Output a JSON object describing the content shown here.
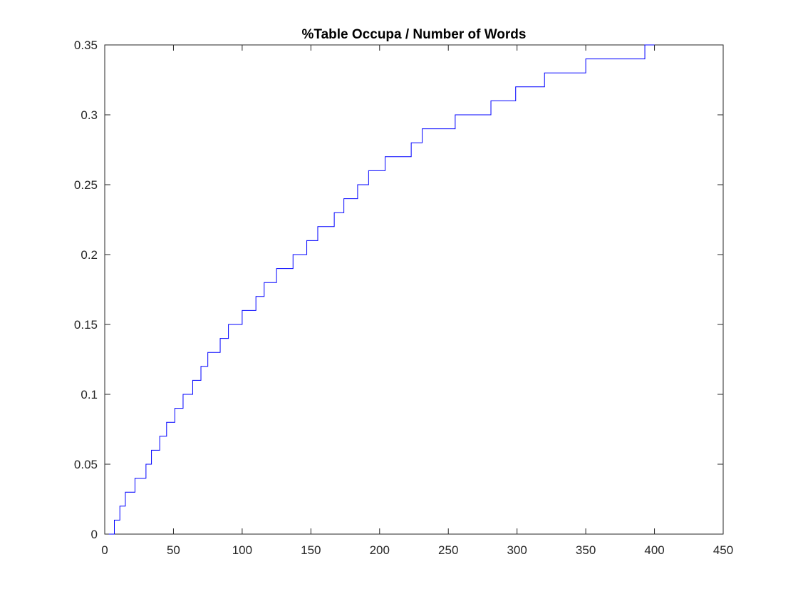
{
  "chart_data": {
    "type": "line",
    "title": "%Table Occupa / Number of Words",
    "xlabel": "",
    "ylabel": "",
    "xlim": [
      0,
      450
    ],
    "ylim": [
      0,
      0.35
    ],
    "x_ticks": [
      0,
      50,
      100,
      150,
      200,
      250,
      300,
      350,
      400,
      450
    ],
    "x_tick_labels": [
      "0",
      "50",
      "100",
      "150",
      "200",
      "250",
      "300",
      "350",
      "400",
      "450"
    ],
    "y_ticks": [
      0,
      0.05,
      0.1,
      0.15,
      0.2,
      0.25,
      0.3,
      0.35
    ],
    "y_tick_labels": [
      "0",
      "0.05",
      "0.1",
      "0.15",
      "0.2",
      "0.25",
      "0.3",
      "0.35"
    ],
    "grid": false,
    "line_color": "#0000ff",
    "series": [
      {
        "step": "post",
        "x": [
          3,
          7,
          11,
          15,
          22,
          30,
          34,
          40,
          45,
          51,
          57,
          64,
          70,
          75,
          84,
          90,
          100,
          110,
          116,
          125,
          137,
          147,
          155,
          167,
          174,
          184,
          192,
          204,
          223,
          231,
          255,
          281,
          299,
          320,
          350,
          393,
          400
        ],
        "y": [
          0,
          0.01,
          0.02,
          0.03,
          0.04,
          0.05,
          0.06,
          0.07,
          0.08,
          0.09,
          0.1,
          0.11,
          0.12,
          0.13,
          0.14,
          0.15,
          0.16,
          0.17,
          0.18,
          0.19,
          0.2,
          0.21,
          0.22,
          0.23,
          0.24,
          0.25,
          0.26,
          0.27,
          0.28,
          0.29,
          0.3,
          0.31,
          0.32,
          0.33,
          0.34,
          0.35,
          0.35
        ]
      }
    ]
  }
}
